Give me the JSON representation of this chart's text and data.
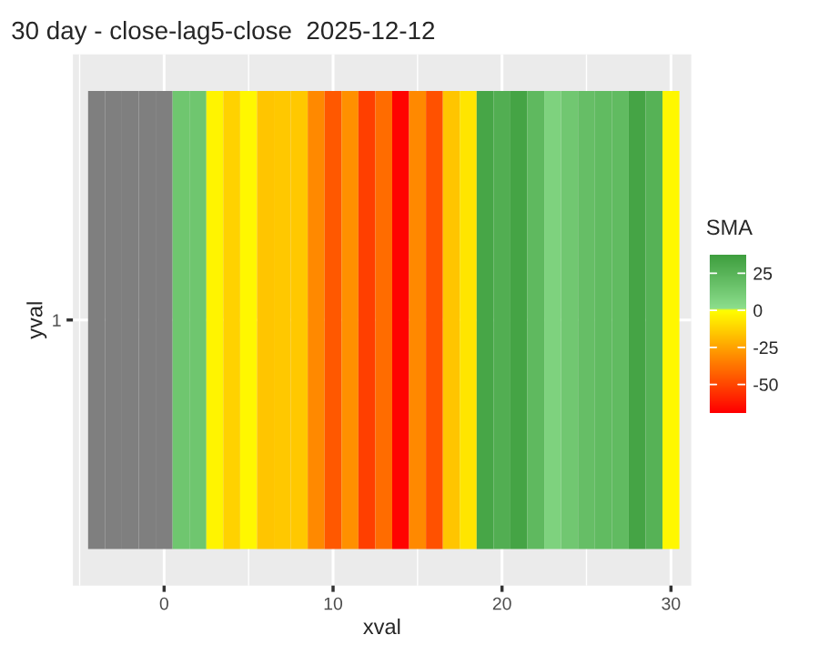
{
  "chart_data": {
    "type": "heatmap",
    "title": "30 day - close-lag5-close  2025-12-12",
    "xlabel": "xval",
    "ylabel": "yval",
    "legend_title": "SMA",
    "x": [
      -4,
      -3,
      -2,
      -1,
      0,
      1,
      2,
      3,
      4,
      5,
      6,
      7,
      8,
      9,
      10,
      11,
      12,
      13,
      14,
      15,
      16,
      17,
      18,
      19,
      20,
      21,
      22,
      23,
      24,
      25,
      26,
      27,
      28,
      29,
      30
    ],
    "y_categories": [
      "1"
    ],
    "cells": [
      [
        null,
        null,
        null,
        null,
        null,
        15,
        15,
        -3,
        -12,
        -2,
        -16,
        -15,
        -15,
        -32,
        -45,
        -30,
        -52,
        -40,
        -68,
        -32,
        -47,
        -16,
        -7,
        33,
        28,
        34,
        22,
        8,
        14,
        19,
        21,
        21,
        34,
        26,
        -2
      ]
    ],
    "xlim": [
      -5.4,
      31.2
    ],
    "xticks": [
      0,
      10,
      20,
      30
    ],
    "clim": [
      -69,
      37
    ],
    "cticks": [
      -50,
      -25,
      0,
      25
    ],
    "grid": true
  }
}
